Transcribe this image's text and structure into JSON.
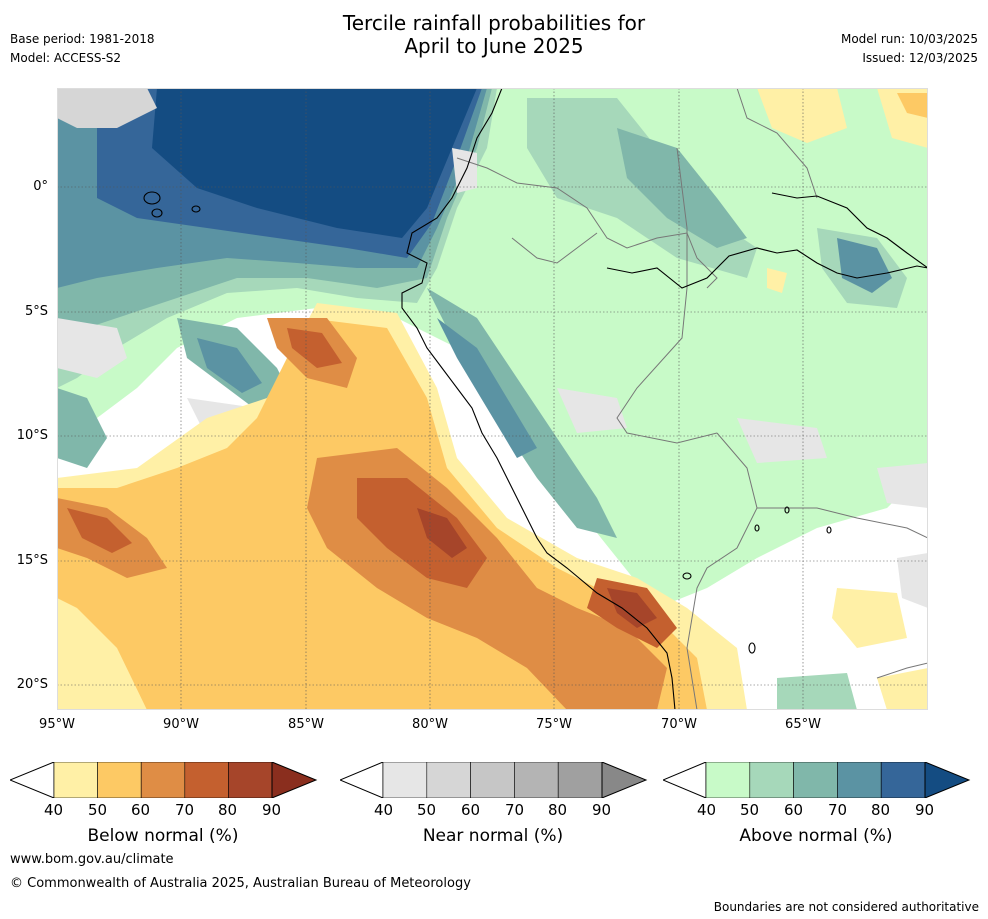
{
  "header": {
    "title_line1": "Tercile rainfall probabilities for",
    "title_line2": "April to June 2025",
    "base_period": "Base period: 1981-2018",
    "model": "Model: ACCESS-S2",
    "model_run": "Model run: 10/03/2025",
    "issued": "Issued: 12/03/2025"
  },
  "map": {
    "lat_labels": [
      "0°",
      "5°S",
      "10°S",
      "15°S",
      "20°S"
    ],
    "lon_labels": [
      "95°W",
      "90°W",
      "85°W",
      "80°W",
      "75°W",
      "70°W",
      "65°W"
    ]
  },
  "colorbars": [
    {
      "caption": "Below normal (%)",
      "ticks": [
        "40",
        "50",
        "60",
        "70",
        "80",
        "90"
      ],
      "colors": [
        "#fff0a6",
        "#fdc964",
        "#df8d45",
        "#c4602f",
        "#a6452a",
        "#8a2e1e"
      ]
    },
    {
      "caption": "Near normal (%)",
      "ticks": [
        "40",
        "50",
        "60",
        "70",
        "80",
        "90"
      ],
      "colors": [
        "#e6e6e6",
        "#d6d6d6",
        "#c6c6c6",
        "#b4b4b4",
        "#a0a0a0",
        "#888888"
      ]
    },
    {
      "caption": "Above normal (%)",
      "ticks": [
        "40",
        "50",
        "60",
        "70",
        "80",
        "90"
      ],
      "colors": [
        "#c8fac8",
        "#a6d8ba",
        "#80b7aa",
        "#5b93a3",
        "#356699",
        "#144c82"
      ]
    }
  ],
  "footer": {
    "url": "www.bom.gov.au/climate",
    "copyright": "© Commonwealth of Australia 2025, Australian Bureau of Meteorology",
    "disclaimer": "Boundaries are not considered authoritative"
  }
}
